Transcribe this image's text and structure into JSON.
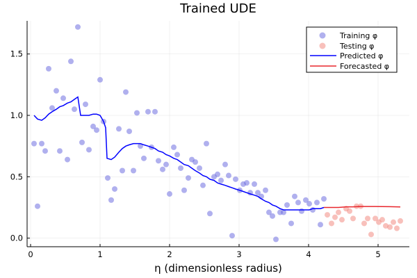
{
  "chart_data": {
    "type": "scatter",
    "title": "Trained UDE",
    "xlabel": "η (dimensionless radius)",
    "ylabel": "",
    "xlim": [
      -0.05,
      5.45
    ],
    "ylim": [
      -0.07,
      1.77
    ],
    "xticks": [
      0,
      1,
      2,
      3,
      4,
      5
    ],
    "yticks": [
      0.0,
      0.5,
      1.0,
      1.5
    ],
    "xtick_labels": [
      "0",
      "1",
      "2",
      "3",
      "4",
      "5"
    ],
    "ytick_labels": [
      "0.0",
      "0.5",
      "1.0",
      "1.5"
    ],
    "grid": true,
    "legend_position": "top-right",
    "series": [
      {
        "name": "Training φ",
        "kind": "scatter",
        "color": "#6f6fe0",
        "points": [
          [
            0.05,
            0.77
          ],
          [
            0.1,
            0.26
          ],
          [
            0.16,
            0.77
          ],
          [
            0.21,
            0.71
          ],
          [
            0.26,
            1.38
          ],
          [
            0.31,
            1.06
          ],
          [
            0.37,
            1.2
          ],
          [
            0.42,
            0.71
          ],
          [
            0.47,
            1.14
          ],
          [
            0.53,
            0.64
          ],
          [
            0.58,
            1.44
          ],
          [
            0.63,
            1.05
          ],
          [
            0.68,
            1.72
          ],
          [
            0.74,
            0.78
          ],
          [
            0.79,
            1.09
          ],
          [
            0.84,
            0.72
          ],
          [
            0.9,
            0.91
          ],
          [
            0.95,
            0.88
          ],
          [
            1.0,
            1.29
          ],
          [
            1.05,
            0.95
          ],
          [
            1.11,
            0.49
          ],
          [
            1.16,
            0.31
          ],
          [
            1.21,
            0.4
          ],
          [
            1.27,
            0.89
          ],
          [
            1.32,
            0.55
          ],
          [
            1.37,
            1.19
          ],
          [
            1.42,
            0.87
          ],
          [
            1.48,
            0.55
          ],
          [
            1.53,
            1.02
          ],
          [
            1.58,
            0.75
          ],
          [
            1.63,
            0.65
          ],
          [
            1.69,
            1.03
          ],
          [
            1.74,
            0.74
          ],
          [
            1.79,
            1.03
          ],
          [
            1.84,
            0.63
          ],
          [
            1.9,
            0.56
          ],
          [
            1.95,
            0.6
          ],
          [
            2.0,
            0.36
          ],
          [
            2.06,
            0.74
          ],
          [
            2.11,
            0.68
          ],
          [
            2.16,
            0.57
          ],
          [
            2.21,
            0.39
          ],
          [
            2.27,
            0.49
          ],
          [
            2.32,
            0.64
          ],
          [
            2.37,
            0.62
          ],
          [
            2.43,
            0.57
          ],
          [
            2.48,
            0.43
          ],
          [
            2.53,
            0.77
          ],
          [
            2.58,
            0.2
          ],
          [
            2.64,
            0.5
          ],
          [
            2.69,
            0.52
          ],
          [
            2.74,
            0.47
          ],
          [
            2.8,
            0.6
          ],
          [
            2.85,
            0.51
          ],
          [
            2.9,
            0.02
          ],
          [
            2.95,
            0.48
          ],
          [
            3.01,
            0.39
          ],
          [
            3.06,
            0.44
          ],
          [
            3.11,
            0.45
          ],
          [
            3.16,
            0.37
          ],
          [
            3.22,
            0.44
          ],
          [
            3.27,
            0.37
          ],
          [
            3.32,
            0.34
          ],
          [
            3.38,
            0.39
          ],
          [
            3.43,
            0.21
          ],
          [
            3.48,
            0.18
          ],
          [
            3.53,
            -0.01
          ],
          [
            3.59,
            0.21
          ],
          [
            3.64,
            0.21
          ],
          [
            3.69,
            0.27
          ],
          [
            3.75,
            0.12
          ],
          [
            3.8,
            0.34
          ],
          [
            3.85,
            0.29
          ],
          [
            3.9,
            0.22
          ],
          [
            3.96,
            0.31
          ],
          [
            4.01,
            0.28
          ],
          [
            4.06,
            0.23
          ],
          [
            4.12,
            0.29
          ],
          [
            4.17,
            0.11
          ],
          [
            4.22,
            0.32
          ]
        ]
      },
      {
        "name": "Testing φ",
        "kind": "scatter",
        "color": "#f28c84",
        "points": [
          [
            4.27,
            0.19
          ],
          [
            4.33,
            0.12
          ],
          [
            4.38,
            0.17
          ],
          [
            4.43,
            0.21
          ],
          [
            4.48,
            0.15
          ],
          [
            4.54,
            0.24
          ],
          [
            4.59,
            0.22
          ],
          [
            4.64,
            0.16
          ],
          [
            4.69,
            0.26
          ],
          [
            4.75,
            0.26
          ],
          [
            4.8,
            0.12
          ],
          [
            4.85,
            0.16
          ],
          [
            4.9,
            0.03
          ],
          [
            4.96,
            0.16
          ],
          [
            5.01,
            0.13
          ],
          [
            5.06,
            0.15
          ],
          [
            5.11,
            0.1
          ],
          [
            5.17,
            0.09
          ],
          [
            5.22,
            0.13
          ],
          [
            5.27,
            0.08
          ],
          [
            5.32,
            0.14
          ]
        ]
      },
      {
        "name": "Predicted φ",
        "kind": "line",
        "color": "#0000ff",
        "points": [
          [
            0.05,
            1.0
          ],
          [
            0.1,
            0.97
          ],
          [
            0.16,
            0.96
          ],
          [
            0.21,
            0.98
          ],
          [
            0.26,
            1.01
          ],
          [
            0.31,
            1.03
          ],
          [
            0.37,
            1.05
          ],
          [
            0.42,
            1.07
          ],
          [
            0.47,
            1.08
          ],
          [
            0.53,
            1.1
          ],
          [
            0.58,
            1.11
          ],
          [
            0.63,
            1.13
          ],
          [
            0.68,
            1.15
          ],
          [
            0.72,
            1.0
          ],
          [
            0.79,
            1.0
          ],
          [
            0.84,
            1.0
          ],
          [
            0.9,
            1.01
          ],
          [
            0.95,
            1.01
          ],
          [
            1.0,
            1.0
          ],
          [
            1.05,
            0.95
          ],
          [
            1.08,
            0.9
          ],
          [
            1.1,
            0.65
          ],
          [
            1.16,
            0.64
          ],
          [
            1.21,
            0.66
          ],
          [
            1.27,
            0.7
          ],
          [
            1.32,
            0.73
          ],
          [
            1.37,
            0.75
          ],
          [
            1.42,
            0.76
          ],
          [
            1.48,
            0.77
          ],
          [
            1.53,
            0.77
          ],
          [
            1.58,
            0.77
          ],
          [
            1.63,
            0.76
          ],
          [
            1.69,
            0.75
          ],
          [
            1.74,
            0.74
          ],
          [
            1.79,
            0.73
          ],
          [
            1.84,
            0.71
          ],
          [
            1.9,
            0.7
          ],
          [
            1.95,
            0.68
          ],
          [
            2.0,
            0.67
          ],
          [
            2.06,
            0.65
          ],
          [
            2.11,
            0.64
          ],
          [
            2.16,
            0.62
          ],
          [
            2.21,
            0.6
          ],
          [
            2.27,
            0.59
          ],
          [
            2.32,
            0.57
          ],
          [
            2.37,
            0.55
          ],
          [
            2.43,
            0.53
          ],
          [
            2.48,
            0.51
          ],
          [
            2.53,
            0.5
          ],
          [
            2.58,
            0.48
          ],
          [
            2.64,
            0.47
          ],
          [
            2.69,
            0.45
          ],
          [
            2.74,
            0.44
          ],
          [
            2.8,
            0.43
          ],
          [
            2.85,
            0.42
          ],
          [
            2.9,
            0.41
          ],
          [
            2.95,
            0.4
          ],
          [
            3.01,
            0.39
          ],
          [
            3.06,
            0.38
          ],
          [
            3.11,
            0.37
          ],
          [
            3.16,
            0.36
          ],
          [
            3.22,
            0.35
          ],
          [
            3.27,
            0.34
          ],
          [
            3.32,
            0.32
          ],
          [
            3.38,
            0.3
          ],
          [
            3.43,
            0.29
          ],
          [
            3.48,
            0.27
          ],
          [
            3.53,
            0.26
          ],
          [
            3.59,
            0.24
          ],
          [
            3.64,
            0.23
          ],
          [
            3.69,
            0.23
          ],
          [
            3.75,
            0.23
          ],
          [
            3.8,
            0.23
          ],
          [
            3.85,
            0.23
          ],
          [
            3.9,
            0.23
          ],
          [
            3.96,
            0.23
          ],
          [
            4.01,
            0.23
          ],
          [
            4.06,
            0.24
          ],
          [
            4.12,
            0.24
          ],
          [
            4.17,
            0.24
          ],
          [
            4.22,
            0.25
          ]
        ]
      },
      {
        "name": "Forecasted φ",
        "kind": "line",
        "color": "#e8262c",
        "points": [
          [
            4.22,
            0.25
          ],
          [
            4.27,
            0.25
          ],
          [
            4.33,
            0.25
          ],
          [
            4.43,
            0.25
          ],
          [
            4.54,
            0.255
          ],
          [
            4.64,
            0.255
          ],
          [
            4.75,
            0.258
          ],
          [
            4.85,
            0.258
          ],
          [
            4.96,
            0.258
          ],
          [
            5.06,
            0.257
          ],
          [
            5.17,
            0.256
          ],
          [
            5.32,
            0.254
          ]
        ]
      }
    ]
  }
}
